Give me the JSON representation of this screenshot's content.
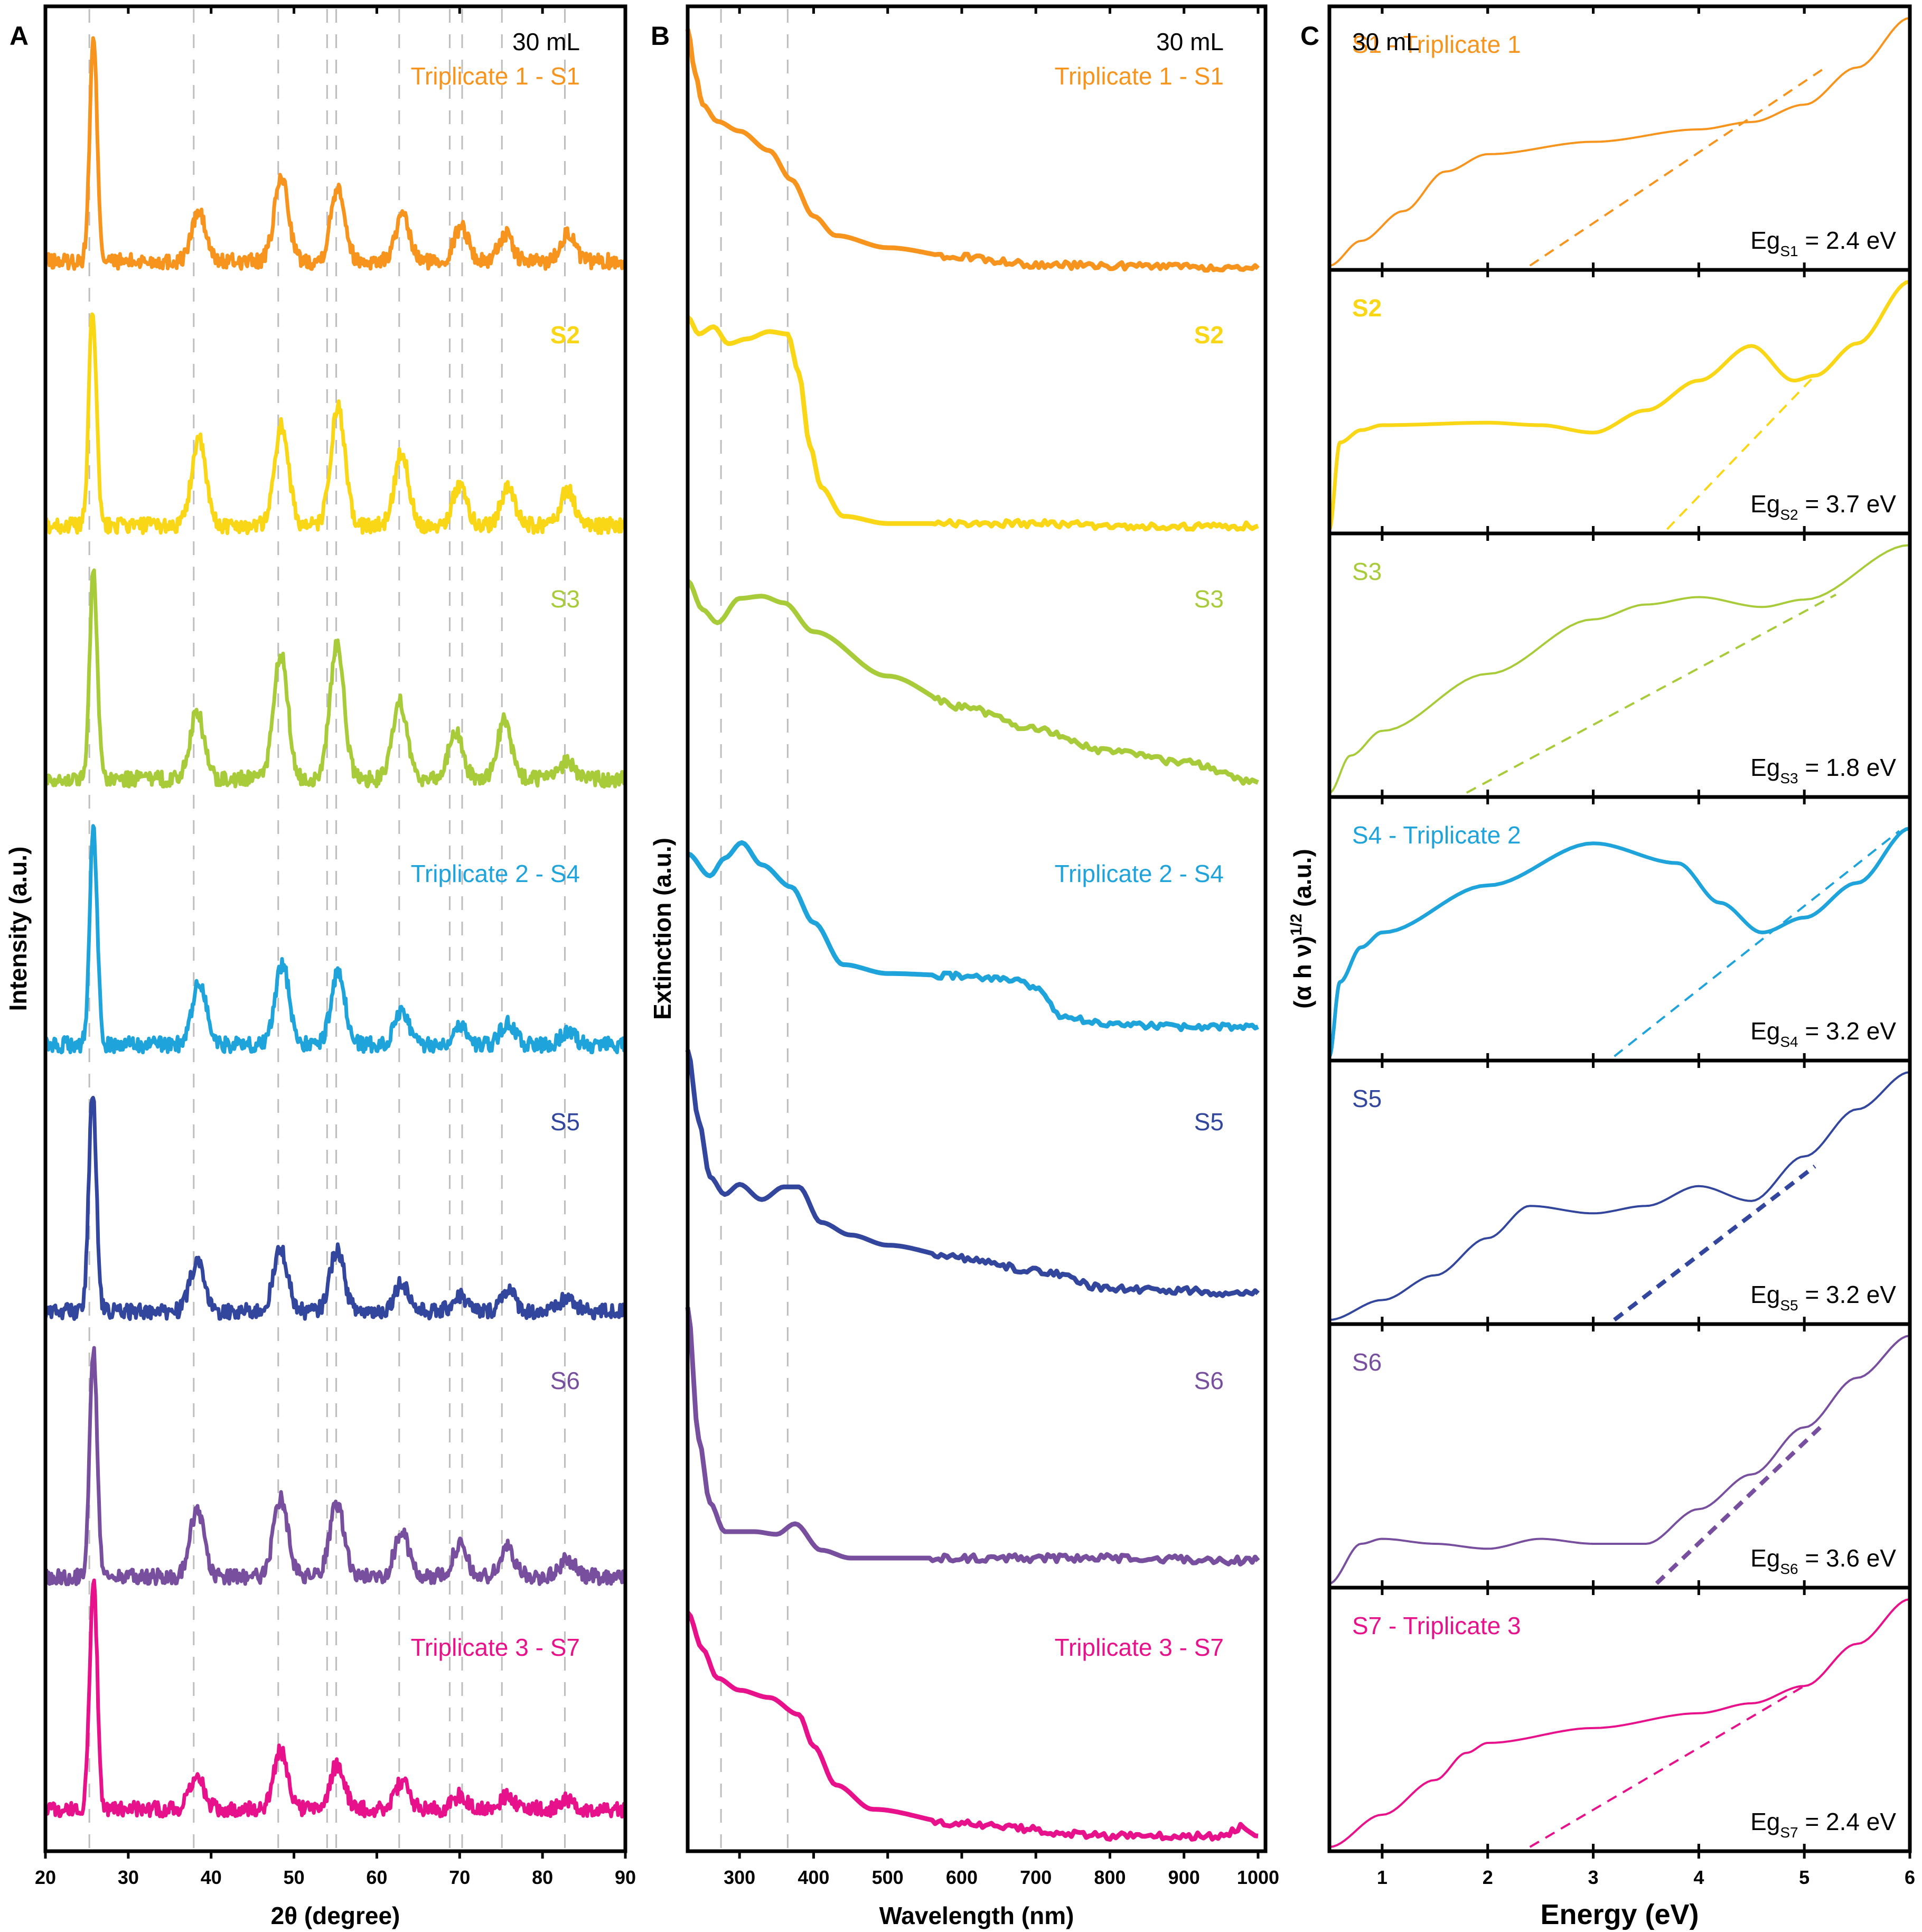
{
  "figure": {
    "panel_letters": [
      "A",
      "B",
      "C"
    ],
    "volume_label": "30 mL"
  },
  "colors": {
    "S1": "#F7941D",
    "S2": "#F9D616",
    "S3": "#A8CB3A",
    "S4": "#1FA3DB",
    "S5": "#33469E",
    "S6": "#774F9E",
    "S7": "#E7128B",
    "axis": "#000000",
    "ref_line": "#BDBDBD"
  },
  "chart_data": [
    {
      "panel": "A",
      "type": "line",
      "title": "",
      "xlabel": "2θ (degree)",
      "ylabel": "Intensity (a.u.)",
      "xlim": [
        20,
        90
      ],
      "xticks": [
        20,
        30,
        40,
        50,
        60,
        70,
        80,
        90
      ],
      "reference_lines_x": [
        25.3,
        37.9,
        48.1,
        54.0,
        55.1,
        62.7,
        68.8,
        70.3,
        75.1,
        82.7
      ],
      "series": [
        {
          "id": "S1",
          "name": "Triplicate 1 - S1",
          "peaks": [
            [
              25.8,
              10.0
            ],
            [
              38.5,
              2.2
            ],
            [
              48.5,
              3.8
            ],
            [
              55.3,
              3.4
            ],
            [
              63.1,
              2.0
            ],
            [
              70.2,
              1.6
            ],
            [
              75.5,
              1.2
            ],
            [
              83.0,
              1.3
            ]
          ]
        },
        {
          "id": "S2",
          "name": "S2",
          "peaks": [
            [
              25.7,
              9.8
            ],
            [
              38.5,
              3.9
            ],
            [
              48.5,
              4.5
            ],
            [
              55.3,
              5.3
            ],
            [
              63.0,
              3.3
            ],
            [
              70.0,
              1.8
            ],
            [
              75.8,
              1.7
            ],
            [
              83.0,
              1.6
            ]
          ]
        },
        {
          "id": "S3",
          "name": "S3",
          "peaks": [
            [
              25.8,
              9.5
            ],
            [
              38.3,
              3.0
            ],
            [
              48.4,
              5.7
            ],
            [
              55.2,
              6.1
            ],
            [
              62.8,
              3.5
            ],
            [
              69.5,
              2.1
            ],
            [
              75.4,
              2.6
            ],
            [
              83.0,
              0.8
            ]
          ]
        },
        {
          "id": "S4",
          "name": "Triplicate 2 - S4",
          "peaks": [
            [
              25.8,
              9.8
            ],
            [
              38.6,
              2.8
            ],
            [
              48.6,
              3.6
            ],
            [
              55.3,
              3.2
            ],
            [
              63.0,
              1.6
            ],
            [
              70.0,
              0.9
            ],
            [
              75.8,
              1.0
            ],
            [
              83.0,
              0.6
            ]
          ]
        },
        {
          "id": "S5",
          "name": "S5",
          "peaks": [
            [
              25.7,
              10.0
            ],
            [
              38.3,
              2.2
            ],
            [
              48.4,
              2.8
            ],
            [
              55.2,
              2.8
            ],
            [
              63.0,
              1.3
            ],
            [
              70.0,
              0.7
            ],
            [
              75.8,
              1.0
            ],
            [
              83.0,
              0.6
            ]
          ]
        },
        {
          "id": "S6",
          "name": "S6",
          "peaks": [
            [
              25.8,
              10.2
            ],
            [
              38.3,
              3.0
            ],
            [
              48.4,
              3.5
            ],
            [
              55.2,
              3.3
            ],
            [
              63.0,
              2.0
            ],
            [
              70.0,
              1.4
            ],
            [
              75.8,
              1.3
            ],
            [
              83.0,
              0.8
            ]
          ]
        },
        {
          "id": "S7",
          "name": "Triplicate 3 - S7",
          "peaks": [
            [
              25.8,
              10.5
            ],
            [
              38.3,
              1.5
            ],
            [
              48.4,
              2.6
            ],
            [
              55.2,
              2.0
            ],
            [
              63.0,
              1.2
            ],
            [
              70.0,
              0.6
            ],
            [
              75.8,
              0.6
            ],
            [
              83.0,
              0.4
            ]
          ]
        }
      ]
    },
    {
      "panel": "B",
      "type": "line",
      "title": "",
      "xlabel": "Wavelength (nm)",
      "ylabel": "Extinction (a.u.)",
      "xlim": [
        230,
        1010
      ],
      "xticks": [
        300,
        400,
        500,
        600,
        700,
        800,
        900,
        1000
      ],
      "reference_lines_x": [
        275,
        365
      ],
      "series": [
        {
          "id": "S1",
          "name": "Triplicate 1 - S1",
          "x": [
            230,
            240,
            250,
            270,
            300,
            340,
            370,
            400,
            430,
            500,
            600,
            700,
            800,
            900,
            1000
          ],
          "y": [
            10.0,
            8.2,
            6.9,
            6.2,
            5.8,
            5.0,
            3.8,
            2.3,
            1.5,
            1.0,
            0.6,
            0.3,
            0.25,
            0.2,
            0.15
          ]
        },
        {
          "id": "S2",
          "name": "S2",
          "x": [
            230,
            245,
            265,
            285,
            310,
            340,
            365,
            380,
            395,
            410,
            440,
            500,
            600,
            700,
            800,
            900,
            1000
          ],
          "y": [
            8.8,
            8.1,
            8.4,
            7.7,
            7.9,
            8.2,
            8.1,
            6.5,
            3.5,
            1.8,
            0.6,
            0.3,
            0.3,
            0.3,
            0.2,
            0.2,
            0.2
          ]
        },
        {
          "id": "S3",
          "name": "S3",
          "x": [
            230,
            250,
            270,
            300,
            330,
            360,
            400,
            500,
            600,
            700,
            800,
            900,
            1000
          ],
          "y": [
            9.3,
            8.0,
            7.4,
            8.5,
            8.6,
            8.3,
            7.0,
            5.0,
            3.6,
            2.6,
            1.6,
            1.1,
            0.2
          ]
        },
        {
          "id": "S4",
          "name": "Triplicate 2 - S4",
          "x": [
            230,
            260,
            280,
            303,
            330,
            370,
            400,
            440,
            500,
            600,
            680,
            700,
            740,
            800,
            900,
            1000
          ],
          "y": [
            8.3,
            7.3,
            8.1,
            8.8,
            7.8,
            6.8,
            5.2,
            3.3,
            2.9,
            2.8,
            2.6,
            2.2,
            0.9,
            0.6,
            0.5,
            0.5
          ]
        },
        {
          "id": "S5",
          "name": "S5",
          "x": [
            230,
            245,
            260,
            280,
            300,
            330,
            360,
            380,
            410,
            450,
            500,
            600,
            700,
            800,
            900,
            1000
          ],
          "y": [
            10.0,
            7.2,
            5.0,
            4.3,
            4.7,
            4.1,
            4.6,
            4.6,
            3.2,
            2.7,
            2.3,
            1.8,
            1.3,
            0.6,
            0.5,
            0.4
          ]
        },
        {
          "id": "S6",
          "name": "S6",
          "x": [
            230,
            245,
            260,
            280,
            320,
            350,
            375,
            410,
            450,
            600,
            800,
            1000
          ],
          "y": [
            10.0,
            5.0,
            2.6,
            1.5,
            1.5,
            1.4,
            1.8,
            0.8,
            0.5,
            0.5,
            0.5,
            0.4
          ]
        },
        {
          "id": "S7",
          "name": "Triplicate 3 - S7",
          "x": [
            230,
            250,
            270,
            300,
            340,
            380,
            400,
            430,
            480,
            600,
            800,
            950,
            980,
            1000
          ],
          "y": [
            9.5,
            8.0,
            6.8,
            6.3,
            6.0,
            5.3,
            4.0,
            2.4,
            1.4,
            0.8,
            0.3,
            0.3,
            0.7,
            0.3
          ]
        }
      ]
    },
    {
      "panel": "C",
      "type": "line",
      "title": "",
      "xlabel": "Energy (eV)",
      "ylabel": "(α h ν)1/2 (a.u.)",
      "xlim": [
        0.5,
        6
      ],
      "xticks": [
        1,
        2,
        3,
        4,
        5,
        6
      ],
      "series": [
        {
          "id": "S1",
          "name": "S1 - Triplicate 1",
          "band_gap_label": "Egs1 = 2.4 eV",
          "band_gap_eV": 2.4,
          "x": [
            0.5,
            0.8,
            1.2,
            1.6,
            2.0,
            3.0,
            4.0,
            4.5,
            5.0,
            5.5,
            6.0
          ],
          "y": [
            0.0,
            1.0,
            2.2,
            3.8,
            4.5,
            5.0,
            5.5,
            5.8,
            6.5,
            8.0,
            10.0
          ],
          "tangent": [
            [
              2.4,
              0.0
            ],
            [
              5.2,
              8.0
            ]
          ]
        },
        {
          "id": "S2",
          "name": "S2",
          "band_gap_label": "Egs2 = 3.7 eV",
          "band_gap_eV": 3.7,
          "x": [
            0.5,
            0.6,
            0.8,
            1.0,
            2.0,
            2.5,
            3.0,
            3.5,
            4.0,
            4.5,
            4.9,
            5.1,
            5.5,
            6.0
          ],
          "y": [
            0.0,
            3.5,
            4.0,
            4.2,
            4.3,
            4.2,
            3.9,
            4.8,
            6.0,
            7.4,
            6.0,
            6.2,
            7.5,
            10.0
          ],
          "tangent": [
            [
              3.7,
              0.0
            ],
            [
              5.1,
              6.2
            ]
          ]
        },
        {
          "id": "S3",
          "name": "S3",
          "band_gap_label": "Egs3 = 1.8 eV",
          "band_gap_eV": 1.8,
          "x": [
            0.5,
            0.7,
            1.0,
            2.0,
            3.0,
            3.5,
            4.0,
            4.6,
            5.0,
            6.0
          ],
          "y": [
            0.0,
            1.5,
            2.5,
            4.8,
            7.0,
            7.6,
            7.9,
            7.5,
            7.8,
            10.0
          ],
          "tangent": [
            [
              1.8,
              0.0
            ],
            [
              5.3,
              8.0
            ]
          ]
        },
        {
          "id": "S4",
          "name": "S4 - Triplicate 2",
          "band_gap_label": "Egs4 = 3.2 eV",
          "band_gap_eV": 3.2,
          "x": [
            0.5,
            0.6,
            0.8,
            1.0,
            2.0,
            3.0,
            3.8,
            4.2,
            4.6,
            5.0,
            5.5,
            6.0
          ],
          "y": [
            0.0,
            3.0,
            4.4,
            5.0,
            6.9,
            8.6,
            7.8,
            6.2,
            5.0,
            5.6,
            7.0,
            9.2
          ],
          "tangent": [
            [
              3.2,
              0.0
            ],
            [
              5.9,
              9.1
            ]
          ]
        },
        {
          "id": "S5",
          "name": "S5",
          "band_gap_label": "Egs5 = 3.2 eV",
          "band_gap_eV": 3.2,
          "x": [
            0.5,
            1.0,
            1.5,
            2.0,
            2.4,
            3.0,
            3.5,
            4.0,
            4.5,
            5.0,
            5.5,
            6.0
          ],
          "y": [
            0.0,
            0.8,
            1.8,
            3.3,
            4.6,
            4.3,
            4.6,
            5.4,
            4.8,
            6.6,
            8.5,
            10.0
          ],
          "tangent": [
            [
              3.2,
              0.0
            ],
            [
              5.1,
              6.2
            ]
          ]
        },
        {
          "id": "S6",
          "name": "S6",
          "band_gap_label": "Egs6 = 3.6 eV",
          "band_gap_eV": 3.6,
          "x": [
            0.5,
            0.8,
            1.0,
            1.5,
            2.0,
            2.5,
            3.0,
            3.5,
            4.0,
            4.5,
            5.0,
            5.5,
            6.0
          ],
          "y": [
            0.0,
            1.6,
            1.8,
            1.6,
            1.4,
            1.8,
            1.6,
            1.6,
            3.0,
            4.4,
            6.3,
            8.3,
            10.0
          ],
          "tangent": [
            [
              3.6,
              0.0
            ],
            [
              5.2,
              6.5
            ]
          ]
        },
        {
          "id": "S7",
          "name": "S7 - Triplicate 3",
          "band_gap_label": "Egs7 = 2.4 eV",
          "band_gap_eV": 2.4,
          "x": [
            0.5,
            1.0,
            1.5,
            1.8,
            2.0,
            3.0,
            4.0,
            4.5,
            5.0,
            5.5,
            6.0
          ],
          "y": [
            0.0,
            1.3,
            2.7,
            3.8,
            4.2,
            4.8,
            5.4,
            5.8,
            6.5,
            8.2,
            10.0
          ],
          "tangent": [
            [
              2.4,
              0.0
            ],
            [
              5.0,
              6.5
            ]
          ]
        }
      ]
    }
  ]
}
